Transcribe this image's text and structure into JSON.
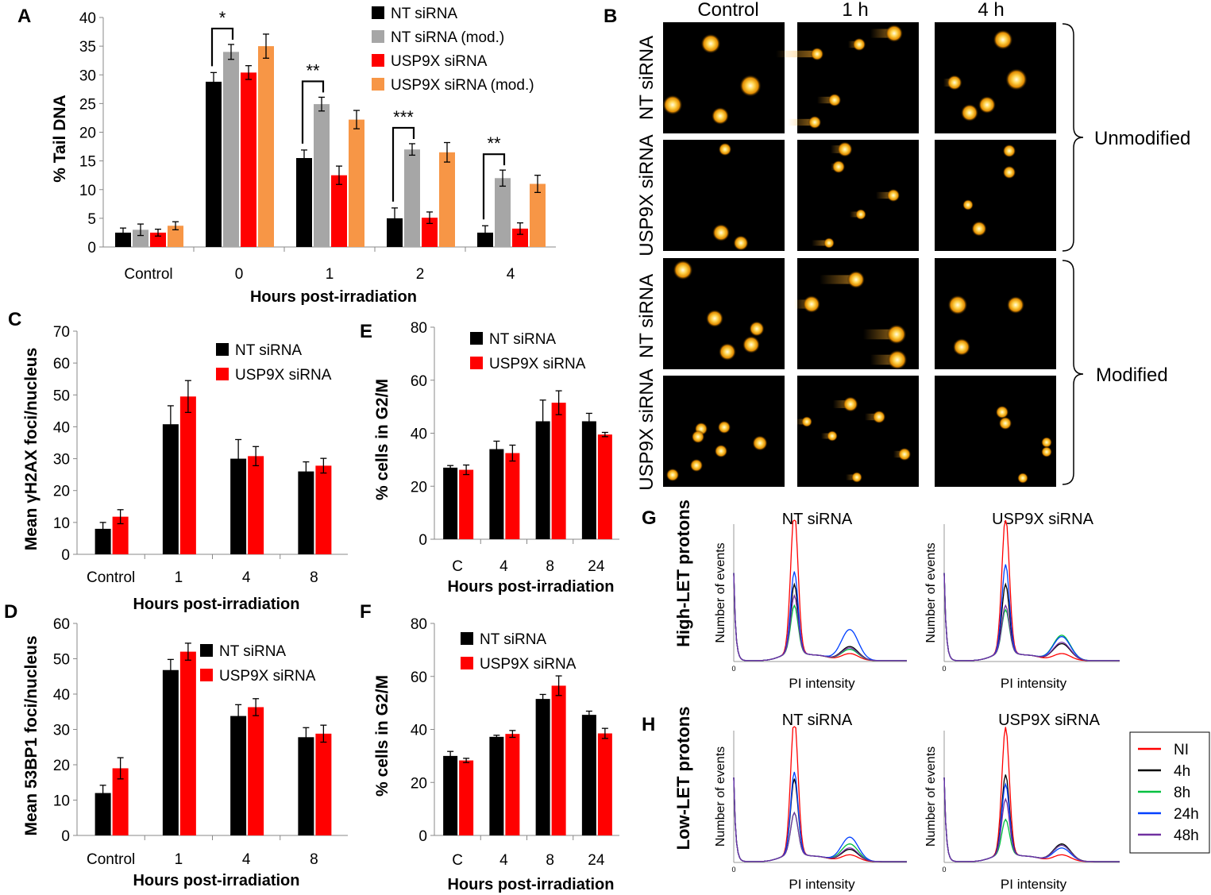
{
  "colors": {
    "nt": "#000000",
    "nt_mod": "#a6a6a6",
    "usp": "#ff0000",
    "usp_mod": "#f79646",
    "black_bg": "#000000",
    "flow_NI": "#ff0000",
    "flow_4h": "#000000",
    "flow_8h": "#00c040",
    "flow_24h": "#0040ff",
    "flow_48h": "#7030a0"
  },
  "panel_letters": {
    "A": "A",
    "B": "B",
    "C": "C",
    "D": "D",
    "E": "E",
    "F": "F",
    "G": "G",
    "H": "H"
  },
  "chart_data": [
    {
      "panel": "A",
      "type": "bar",
      "ylabel": "% Tail DNA",
      "xlabel": "Hours post-irradiation",
      "ylim": [
        0,
        40
      ],
      "yticks": [
        "0",
        "5",
        "10",
        "15",
        "20",
        "25",
        "30",
        "35",
        "40"
      ],
      "categories": [
        "Control",
        "0",
        "1",
        "2",
        "4"
      ],
      "series": [
        {
          "name": "NT siRNA",
          "values": [
            2.5,
            28.8,
            15.5,
            5.0,
            2.5
          ],
          "errors": [
            0.8,
            1.6,
            1.4,
            1.8,
            1.2
          ]
        },
        {
          "name": "NT siRNA (mod.)",
          "values": [
            3.0,
            34.0,
            24.9,
            17.0,
            12.0
          ],
          "errors": [
            1.0,
            1.3,
            1.2,
            1.0,
            1.4
          ]
        },
        {
          "name": "USP9X siRNA",
          "values": [
            2.5,
            30.4,
            12.5,
            5.1,
            3.2
          ],
          "errors": [
            0.6,
            1.2,
            1.6,
            1.0,
            1.0
          ]
        },
        {
          "name": "USP9X siRNA (mod.)",
          "values": [
            3.7,
            35.0,
            22.2,
            16.5,
            11.0
          ],
          "errors": [
            0.7,
            2.1,
            1.6,
            1.7,
            1.5
          ]
        }
      ],
      "annotations": [
        {
          "label": "*",
          "category": "0"
        },
        {
          "label": "**",
          "category": "1"
        },
        {
          "label": "***",
          "category": "2"
        },
        {
          "label": "**",
          "category": "4"
        }
      ]
    },
    {
      "panel": "C",
      "type": "bar",
      "ylabel": "Mean γH2AX foci/nucleus",
      "xlabel": "Hours post-irradiation",
      "ylim": [
        0,
        70
      ],
      "yticks": [
        "0",
        "10",
        "20",
        "30",
        "40",
        "50",
        "60",
        "70"
      ],
      "categories": [
        "Control",
        "1",
        "4",
        "8"
      ],
      "series": [
        {
          "name": "NT siRNA",
          "values": [
            8.0,
            40.8,
            30.0,
            26.0
          ],
          "errors": [
            2.0,
            5.8,
            6.0,
            3.0
          ]
        },
        {
          "name": "USP9X siRNA",
          "values": [
            11.8,
            49.5,
            30.8,
            27.8
          ],
          "errors": [
            2.2,
            5.0,
            3.0,
            2.3
          ]
        }
      ]
    },
    {
      "panel": "D",
      "type": "bar",
      "ylabel": "Mean 53BP1 foci/nucleus",
      "xlabel": "Hours post-irradiation",
      "ylim": [
        0,
        60
      ],
      "yticks": [
        "0",
        "10",
        "20",
        "30",
        "40",
        "50",
        "60"
      ],
      "categories": [
        "Control",
        "1",
        "4",
        "8"
      ],
      "series": [
        {
          "name": "NT siRNA",
          "values": [
            12.0,
            46.8,
            33.8,
            27.8
          ],
          "errors": [
            2.2,
            3.0,
            3.2,
            2.7
          ]
        },
        {
          "name": "USP9X siRNA",
          "values": [
            19.0,
            52.0,
            36.3,
            28.8
          ],
          "errors": [
            3.0,
            2.4,
            2.4,
            2.4
          ]
        }
      ]
    },
    {
      "panel": "E",
      "type": "bar",
      "ylabel": "% cells in G2/M",
      "xlabel": "Hours post-irradiation",
      "ylim": [
        0,
        80
      ],
      "yticks": [
        "0",
        "20",
        "40",
        "60",
        "80"
      ],
      "categories": [
        "C",
        "4",
        "8",
        "24"
      ],
      "series": [
        {
          "name": "NT siRNA",
          "values": [
            27.0,
            34.0,
            44.5,
            44.5
          ],
          "errors": [
            0.8,
            3.0,
            8.0,
            3.0
          ]
        },
        {
          "name": "USP9X siRNA",
          "values": [
            26.2,
            32.5,
            51.5,
            39.5
          ],
          "errors": [
            1.8,
            3.0,
            4.5,
            0.8
          ]
        }
      ]
    },
    {
      "panel": "F",
      "type": "bar",
      "ylabel": "% cells in G2/M",
      "xlabel": "Hours post-irradiation",
      "ylim": [
        0,
        80
      ],
      "yticks": [
        "0",
        "20",
        "40",
        "60",
        "80"
      ],
      "categories": [
        "C",
        "4",
        "8",
        "24"
      ],
      "series": [
        {
          "name": "NT siRNA",
          "values": [
            30.0,
            37.2,
            51.5,
            45.5
          ],
          "errors": [
            1.7,
            0.6,
            1.7,
            1.4
          ]
        },
        {
          "name": "USP9X siRNA",
          "values": [
            28.3,
            38.3,
            56.5,
            38.5
          ],
          "errors": [
            0.8,
            1.3,
            3.7,
            1.9
          ]
        }
      ]
    }
  ],
  "comet": {
    "col_headers": [
      "Control",
      "1 h",
      "4 h"
    ],
    "row_labels": [
      "NT siRNA",
      "USP9X siRNA",
      "NT siRNA",
      "USP9X siRNA"
    ],
    "group_labels": [
      "Unmodified",
      "Modified"
    ]
  },
  "flow": {
    "row_titles": [
      "High-LET protons",
      "Low-LET protons"
    ],
    "panel_titles": [
      "NT siRNA",
      "USP9X siRNA",
      "NT siRNA",
      "USP9X siRNA"
    ],
    "ylabel": "Number of events",
    "xlabel": "PI intensity",
    "zero": "0",
    "legend": [
      "NI",
      "4h",
      "8h",
      "24h",
      "48h"
    ]
  }
}
